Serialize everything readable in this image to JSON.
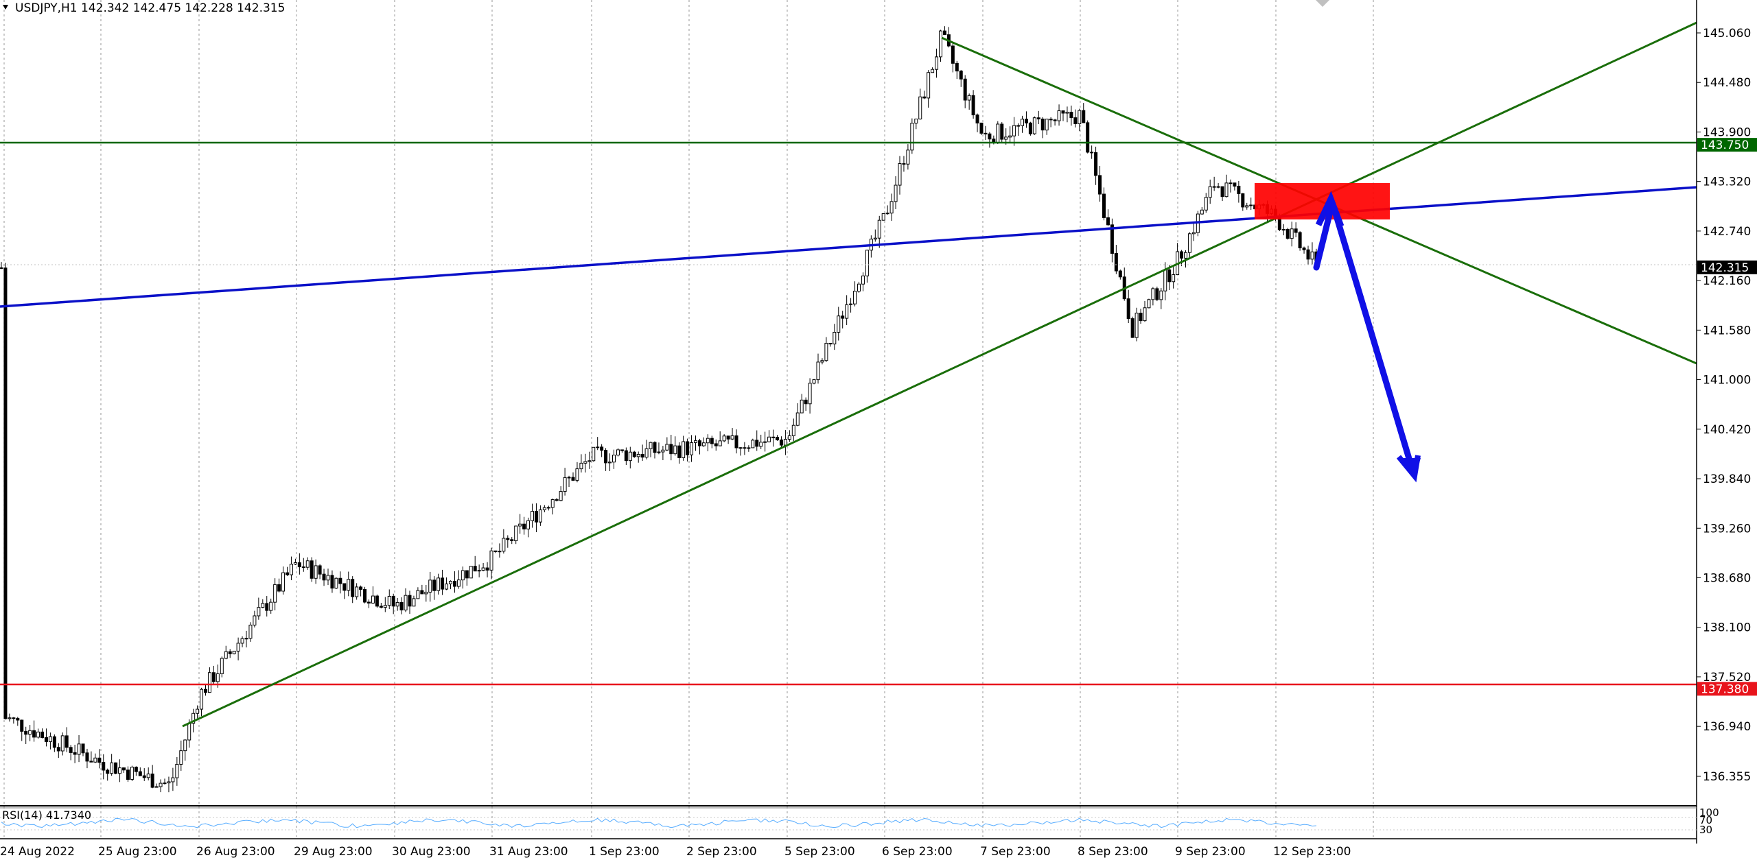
{
  "header": {
    "symbol_line": "USDJPY,H1  142.342 142.475 142.228 142.315"
  },
  "rsi": {
    "label": "RSI(14) 41.7340",
    "levels": [
      "100",
      "70",
      "30"
    ]
  },
  "price_axis": {
    "ticks": [
      "145.060",
      "144.480",
      "143.900",
      "143.320",
      "142.740",
      "142.160",
      "141.580",
      "141.000",
      "140.420",
      "139.840",
      "139.260",
      "138.680",
      "138.100",
      "137.520",
      "136.940",
      "136.355"
    ],
    "tags": [
      {
        "label": "143.750",
        "value": 143.75,
        "color": "#006600"
      },
      {
        "label": "142.315",
        "value": 142.315,
        "color": "#000000"
      },
      {
        "label": "137.380",
        "value": 137.38,
        "color": "#e8141c"
      }
    ]
  },
  "time_axis": {
    "labels": [
      "24 Aug 2022",
      "25 Aug 23:00",
      "26 Aug 23:00",
      "29 Aug 23:00",
      "30 Aug 23:00",
      "31 Aug 23:00",
      "1 Sep 23:00",
      "2 Sep 23:00",
      "5 Sep 23:00",
      "6 Sep 23:00",
      "7 Sep 23:00",
      "8 Sep 23:00",
      "9 Sep 23:00",
      "12 Sep 23:00"
    ]
  },
  "chart_data": {
    "type": "candlestick",
    "symbol": "USDJPY",
    "timeframe": "H1",
    "ohlc_header": {
      "open": 142.342,
      "high": 142.475,
      "low": 142.228,
      "close": 142.315
    },
    "ylim": [
      136.15,
      145.32
    ],
    "day_values": [
      {
        "day": "24 Aug 2022",
        "open": 137.05,
        "close": 136.55
      },
      {
        "day": "25 Aug 23:00",
        "open": 136.52,
        "close": 136.95
      },
      {
        "day": "26 Aug 23:00",
        "open": 137.3,
        "close": 138.85
      },
      {
        "day": "29 Aug 23:00",
        "open": 138.85,
        "close": 138.35
      },
      {
        "day": "30 Aug 23:00",
        "open": 138.35,
        "close": 138.9
      },
      {
        "day": "31 Aug 23:00",
        "open": 138.9,
        "close": 140.1
      },
      {
        "day": "1 Sep 23:00",
        "open": 140.1,
        "close": 140.2
      },
      {
        "day": "2 Sep 23:00",
        "open": 140.2,
        "close": 140.3
      },
      {
        "day": "5 Sep 23:00",
        "open": 140.3,
        "close": 142.9
      },
      {
        "day": "6 Sep 23:00",
        "open": 142.9,
        "close": 143.85
      },
      {
        "day": "7 Sep 23:00",
        "open": 143.85,
        "close": 144.1
      },
      {
        "day": "8 Sep 23:00",
        "open": 144.1,
        "close": 142.4
      },
      {
        "day": "9 Sep 23:00",
        "open": 142.4,
        "close": 142.9
      },
      {
        "day": "12 Sep 23:00",
        "open": 142.9,
        "close": 142.31
      }
    ],
    "swing_high": 145.02,
    "swing_low": 136.25,
    "horizontal_levels": [
      {
        "price": 143.75,
        "color": "#006600"
      },
      {
        "price": 137.38,
        "color": "#e8141c"
      }
    ],
    "colors": {
      "trend_green": "#1a6e0a",
      "trend_blue": "#0a10c8",
      "zone_red": "#ff0000",
      "arrow_blue": "#1010e6",
      "rsi_line": "#1e90ff"
    }
  }
}
